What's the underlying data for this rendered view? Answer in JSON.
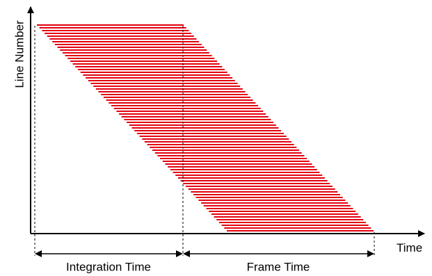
{
  "y_axis_label": "Line Number",
  "x_axis_label": "Time",
  "spans": {
    "integration_label": "Integration Time",
    "frame_label": "Frame Time"
  },
  "colors": {
    "line": "#e3000f",
    "axis": "#000000",
    "dashed": "#000000"
  }
}
